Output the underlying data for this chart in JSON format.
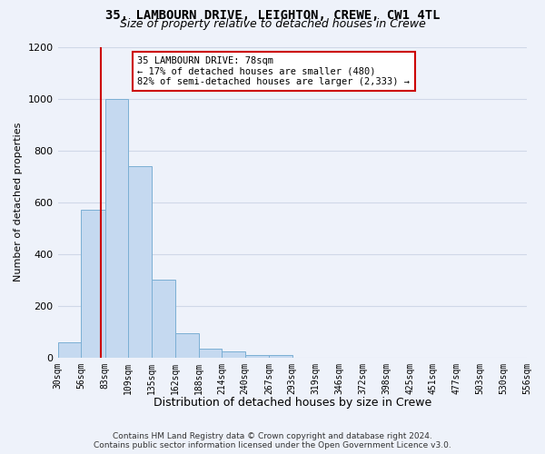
{
  "title1": "35, LAMBOURN DRIVE, LEIGHTON, CREWE, CW1 4TL",
  "title2": "Size of property relative to detached houses in Crewe",
  "xlabel": "Distribution of detached houses by size in Crewe",
  "ylabel": "Number of detached properties",
  "bar_values": [
    60,
    570,
    1000,
    740,
    300,
    95,
    35,
    25,
    12,
    12,
    0,
    0,
    0,
    0,
    0,
    0,
    0,
    0,
    0,
    0
  ],
  "bin_edges": [
    30,
    56,
    83,
    109,
    135,
    162,
    188,
    214,
    240,
    267,
    293,
    319,
    346,
    372,
    398,
    425,
    451,
    477,
    503,
    530,
    556
  ],
  "bin_labels": [
    "30sqm",
    "56sqm",
    "83sqm",
    "109sqm",
    "135sqm",
    "162sqm",
    "188sqm",
    "214sqm",
    "240sqm",
    "267sqm",
    "293sqm",
    "319sqm",
    "346sqm",
    "372sqm",
    "398sqm",
    "425sqm",
    "451sqm",
    "477sqm",
    "503sqm",
    "530sqm",
    "556sqm"
  ],
  "bar_color": "#c5d9f0",
  "bar_edge_color": "#7bafd4",
  "vline_color": "#cc0000",
  "annotation_text": "35 LAMBOURN DRIVE: 78sqm\n← 17% of detached houses are smaller (480)\n82% of semi-detached houses are larger (2,333) →",
  "annotation_box_color": "#ffffff",
  "annotation_box_edge_color": "#cc0000",
  "footer_text": "Contains HM Land Registry data © Crown copyright and database right 2024.\nContains public sector information licensed under the Open Government Licence v3.0.",
  "ylim": [
    0,
    1200
  ],
  "background_color": "#eef2fa",
  "grid_color": "#d0d8e8",
  "title1_fontsize": 10,
  "title2_fontsize": 9,
  "ylabel_fontsize": 8,
  "xlabel_fontsize": 9,
  "tick_fontsize": 7,
  "footer_fontsize": 6.5
}
